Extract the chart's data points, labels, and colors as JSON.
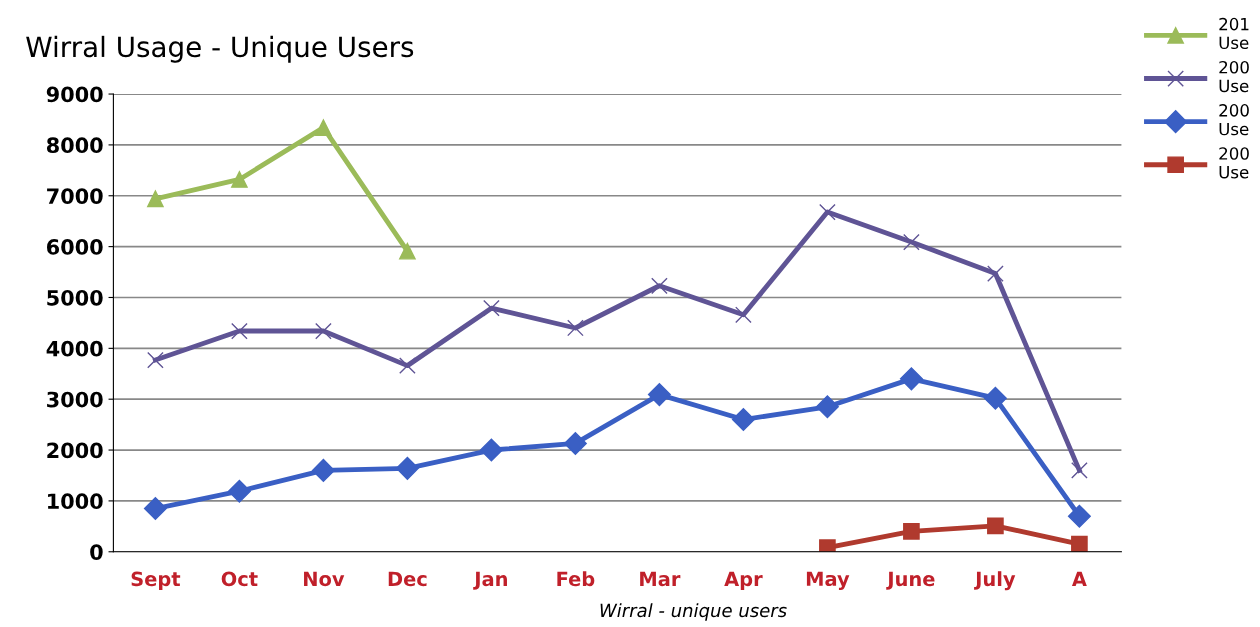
{
  "chart_data": {
    "type": "line",
    "title": "Wirral Usage - Unique Users",
    "categories": [
      "Sept",
      "Oct",
      "Nov",
      "Dec",
      "Jan",
      "Feb",
      "Mar",
      "Apr",
      "May",
      "June",
      "July",
      "A"
    ],
    "series": [
      {
        "name": "201\nUse",
        "color": "#9bbb59",
        "marker": "triangle",
        "values": [
          6940,
          7320,
          8340,
          5910,
          null,
          null,
          null,
          null,
          null,
          null,
          null,
          null
        ]
      },
      {
        "name": "200\nUse",
        "color": "#5f5495",
        "marker": "cross",
        "values": [
          3770,
          4340,
          4340,
          3660,
          4790,
          4400,
          5230,
          4660,
          6680,
          6090,
          5470,
          1600
        ]
      },
      {
        "name": "200\nUse",
        "color": "#3a5fc4",
        "marker": "diamond",
        "values": [
          850,
          1190,
          1600,
          1640,
          2000,
          2130,
          3090,
          2600,
          2850,
          3400,
          3020,
          700
        ]
      },
      {
        "name": "200\nUse",
        "color": "#b03a2e",
        "marker": "square",
        "values": [
          null,
          null,
          null,
          null,
          null,
          null,
          null,
          null,
          80,
          400,
          510,
          150
        ]
      }
    ],
    "ylim": [
      0,
      9000
    ],
    "yticks": [
      0,
      1000,
      2000,
      3000,
      4000,
      5000,
      6000,
      7000,
      8000,
      9000
    ],
    "grid": "y",
    "legend": "top right",
    "annotations": [
      "Wirral - unique users"
    ]
  }
}
